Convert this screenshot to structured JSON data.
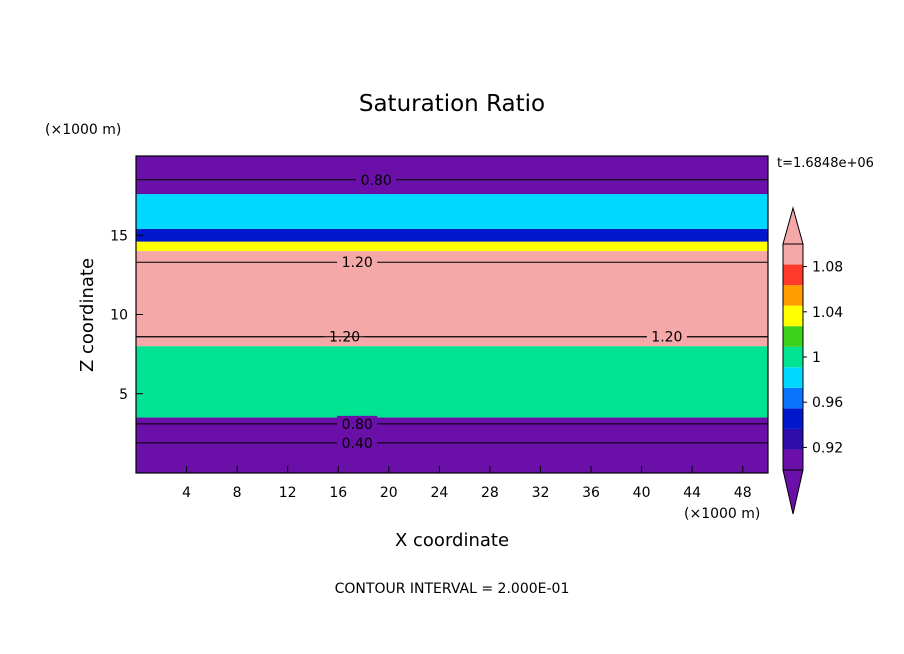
{
  "chart_data": {
    "type": "heatmap",
    "title": "Saturation Ratio",
    "xlabel": "X coordinate",
    "ylabel": "Z coordinate",
    "x_unit": "(×1000 m)",
    "y_unit": "(×1000 m)",
    "time_label": "t=1.6848e+06",
    "footer": "CONTOUR INTERVAL = 2.000E-01",
    "xlim": [
      0,
      50
    ],
    "ylim": [
      0,
      20
    ],
    "x_ticks": [
      4,
      8,
      12,
      16,
      20,
      24,
      28,
      32,
      36,
      40,
      44,
      48
    ],
    "y_ticks": [
      5,
      10,
      15
    ],
    "colorbar": {
      "levels": [
        0.9,
        0.92,
        0.94,
        0.96,
        0.98,
        1.0,
        1.02,
        1.04,
        1.06,
        1.08,
        1.1
      ],
      "labels": [
        "0.92",
        "0.96",
        "1",
        "1.04",
        "1.08"
      ],
      "label_values": [
        0.92,
        0.96,
        1.0,
        1.04,
        1.08
      ],
      "colors": [
        "#6a0fa8",
        "#2c0dab",
        "#0018cc",
        "#0a74ff",
        "#00d8ff",
        "#00e392",
        "#3cd11c",
        "#ffff00",
        "#ff9c00",
        "#ff3a2a",
        "#f5a8a8"
      ],
      "extend": "both"
    },
    "bands": [
      {
        "z": [
          0.0,
          3.5
        ],
        "value": 0.85
      },
      {
        "z": [
          3.5,
          8.0
        ],
        "value": 0.99
      },
      {
        "z": [
          8.0,
          14.0
        ],
        "value": 1.12
      },
      {
        "z": [
          14.0,
          14.6
        ],
        "value": 1.02
      },
      {
        "z": [
          14.6,
          15.4
        ],
        "value": 0.93
      },
      {
        "z": [
          15.4,
          17.6
        ],
        "value": 0.97
      },
      {
        "z": [
          17.6,
          20.0
        ],
        "value": 0.85
      }
    ],
    "contour_labels": [
      {
        "x": 19.0,
        "z": 18.5,
        "text": "0.80"
      },
      {
        "x": 17.5,
        "z": 13.3,
        "text": "1.20"
      },
      {
        "x": 16.5,
        "z": 8.6,
        "text": "1.20"
      },
      {
        "x": 42.0,
        "z": 8.6,
        "text": "1.20"
      },
      {
        "x": 17.5,
        "z": 3.1,
        "text": "0.80"
      },
      {
        "x": 17.5,
        "z": 1.9,
        "text": "0.40"
      }
    ]
  }
}
